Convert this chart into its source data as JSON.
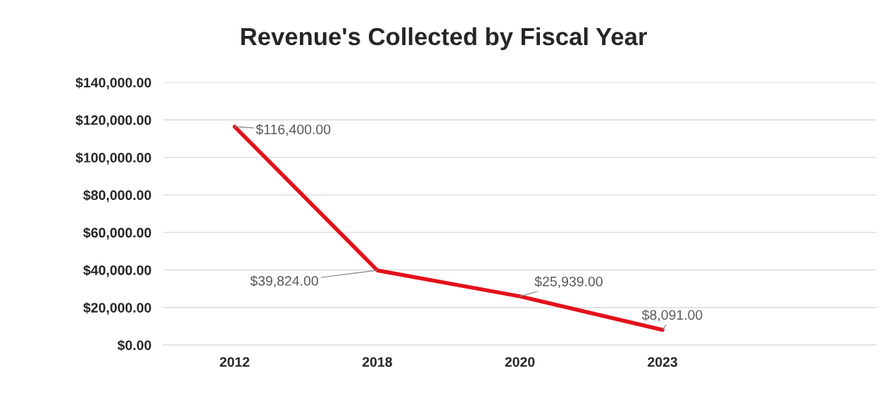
{
  "chart_data": {
    "type": "line",
    "title": "Revenue's Collected by Fiscal Year",
    "categories": [
      "2012",
      "2018",
      "2020",
      "2023"
    ],
    "series": [
      {
        "color": "#e3111b",
        "values": [
          116400,
          39824,
          25939,
          8091
        ],
        "value_labels": [
          "$116,400.00",
          "$39,824.00",
          "$25,939.00",
          "$8,091.00"
        ]
      }
    ],
    "ylim": [
      0,
      140000
    ],
    "yticks": [
      {
        "value": 0,
        "label": "$0.00"
      },
      {
        "value": 20000,
        "label": "$20,000.00"
      },
      {
        "value": 40000,
        "label": "$40,000.00"
      },
      {
        "value": 60000,
        "label": "$60,000.00"
      },
      {
        "value": 80000,
        "label": "$80,000.00"
      },
      {
        "value": 100000,
        "label": "$100,000.00"
      },
      {
        "value": 120000,
        "label": "$120,000.00"
      },
      {
        "value": 140000,
        "label": "$140,000.00"
      }
    ],
    "grid": "y",
    "legend": false,
    "marker": "none",
    "line_style": "solid"
  }
}
